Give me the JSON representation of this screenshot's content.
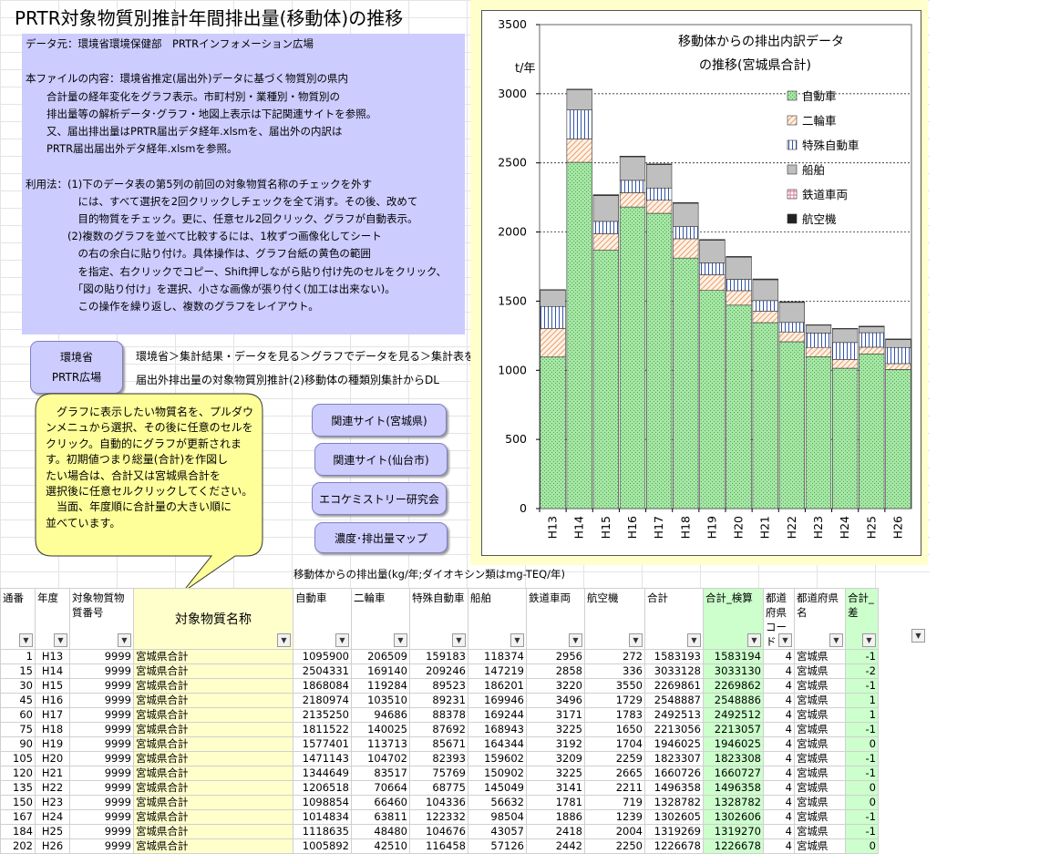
{
  "title": "PRTR対象物質別推計年間排出量(移動体)の推移",
  "info_lines": [
    "データ元：環境省環境保健部　PRTRインフォメーション広場",
    "",
    "本ファイルの内容：環境省推定(届出外)データに基づく物質別の県内",
    "　　合計量の経年変化をグラフ表示。市町村別・業種別・物質別の",
    "　　排出量等の解析データ･グラフ・地図上表示は下記関連サイトを参照。",
    "　　又、届出排出量はPRTR届出デタ経年.xlsmを、届出外の内訳は",
    "　　PRTR届出届出外デタ経年.xlsmを参照。",
    "",
    "利用法：(1)下のデータ表の第5列の前回の対象物質名称のチェックを外す",
    "　　　　　には、すべて選択を2回クリックしチェックを全て消す。その後、改めて",
    "　　　　　目的物質をチェック。更に、任意セル2回クリック、グラフが自動表示。",
    "　　　　(2)複数のグラフを並べて比較するには、1枚ずつ画像化してシート",
    "　　　　　の右の余白に貼り付け。具体操作は、グラフ台紙の黄色の範囲",
    "　　　　　を指定、右クリックでコピー、Shift押しながら貼り付け先のセルをクリック、",
    "　　　　　「図の貼り付け」を選択、小さな画像が張り付く(加工は出来ない)。",
    "　　　　　この操作を繰り返し、複数のグラフをレイアウト。"
  ],
  "env_button": {
    "line1": "環境省",
    "line2": "PRTR広場"
  },
  "links": {
    "line1": "環境省＞集計結果・データを見る＞グラフでデータを見る＞集計表を見る",
    "line2": "届出外排出量の対象物質別推計(2)移動体の種類別集計からDL"
  },
  "callout_lines": [
    "　グラフに表示したい物質名を、プルダウ",
    "ンメニュから選択、その後に任意のセルを",
    "クリック。自動的にグラフが更新されま",
    "す。初期値つまり総量(合計)を作図し",
    "たい場合は、合計又は宮城県合計を",
    "選択後に任意セルクリックしてください。",
    "　当面、年度順に合計量の大きい順に",
    "並べています。"
  ],
  "buttons": [
    "関連サイト(宮城県)",
    "関連サイト(仙台市)",
    "エコケミストリー研究会",
    "濃度･排出量マップ"
  ],
  "table_subtitle": "移動体からの排出量(kg/年;ダイオキシン類はmg-TEQ/年)",
  "columns": [
    "通番",
    "年度",
    "対象物質物質番号",
    "対象物質名称",
    "自動車",
    "二輪車",
    "特殊自動車",
    "船舶",
    "鉄道車両",
    "航空機",
    "合計",
    "合計_検算",
    "都道府県コード",
    "都道府県名",
    "合計_差"
  ],
  "rows": [
    [
      "1",
      "H13",
      "9999",
      "宮城県合計",
      "1095900",
      "206509",
      "159183",
      "118374",
      "2956",
      "272",
      "1583193",
      "1583194",
      "4",
      "宮城県",
      "-1"
    ],
    [
      "15",
      "H14",
      "9999",
      "宮城県合計",
      "2504331",
      "169140",
      "209246",
      "147219",
      "2858",
      "336",
      "3033128",
      "3033130",
      "4",
      "宮城県",
      "-2"
    ],
    [
      "30",
      "H15",
      "9999",
      "宮城県合計",
      "1868084",
      "119284",
      "89523",
      "186201",
      "3220",
      "3550",
      "2269861",
      "2269862",
      "4",
      "宮城県",
      "-1"
    ],
    [
      "45",
      "H16",
      "9999",
      "宮城県合計",
      "2180974",
      "103510",
      "89231",
      "169946",
      "3496",
      "1729",
      "2548887",
      "2548886",
      "4",
      "宮城県",
      "1"
    ],
    [
      "60",
      "H17",
      "9999",
      "宮城県合計",
      "2135250",
      "94686",
      "88378",
      "169244",
      "3171",
      "1783",
      "2492513",
      "2492512",
      "4",
      "宮城県",
      "1"
    ],
    [
      "75",
      "H18",
      "9999",
      "宮城県合計",
      "1811522",
      "140025",
      "87692",
      "168943",
      "3225",
      "1650",
      "2213056",
      "2213057",
      "4",
      "宮城県",
      "-1"
    ],
    [
      "90",
      "H19",
      "9999",
      "宮城県合計",
      "1577401",
      "113713",
      "85671",
      "164344",
      "3192",
      "1704",
      "1946025",
      "1946025",
      "4",
      "宮城県",
      "0"
    ],
    [
      "105",
      "H20",
      "9999",
      "宮城県合計",
      "1471143",
      "104702",
      "82393",
      "159602",
      "3209",
      "2259",
      "1823307",
      "1823308",
      "4",
      "宮城県",
      "-1"
    ],
    [
      "120",
      "H21",
      "9999",
      "宮城県合計",
      "1344649",
      "83517",
      "75769",
      "150902",
      "3225",
      "2665",
      "1660726",
      "1660727",
      "4",
      "宮城県",
      "-1"
    ],
    [
      "135",
      "H22",
      "9999",
      "宮城県合計",
      "1206518",
      "70664",
      "68775",
      "145049",
      "3141",
      "2211",
      "1496358",
      "1496358",
      "4",
      "宮城県",
      "0"
    ],
    [
      "150",
      "H23",
      "9999",
      "宮城県合計",
      "1098854",
      "66460",
      "104336",
      "56632",
      "1781",
      "719",
      "1328782",
      "1328782",
      "4",
      "宮城県",
      "0"
    ],
    [
      "167",
      "H24",
      "9999",
      "宮城県合計",
      "1014834",
      "63811",
      "122332",
      "98504",
      "1886",
      "1239",
      "1302605",
      "1302606",
      "4",
      "宮城県",
      "-1"
    ],
    [
      "184",
      "H25",
      "9999",
      "宮城県合計",
      "1118635",
      "48480",
      "104676",
      "43057",
      "2418",
      "2004",
      "1319269",
      "1319270",
      "4",
      "宮城県",
      "-1"
    ],
    [
      "202",
      "H26",
      "9999",
      "宮城県合計",
      "1005892",
      "42510",
      "116458",
      "57126",
      "2442",
      "2250",
      "1226678",
      "1226678",
      "4",
      "宮城県",
      "0"
    ]
  ],
  "chart_data": {
    "type": "bar",
    "stacked": true,
    "title": "移動体からの排出内訳データ\nの推移(宮城県合計)",
    "ylabel": "t/年",
    "ylim": [
      0,
      3500
    ],
    "yticks": [
      0,
      500,
      1000,
      1500,
      2000,
      2500,
      3000,
      3500
    ],
    "categories": [
      "H13",
      "H14",
      "H15",
      "H16",
      "H17",
      "H18",
      "H19",
      "H20",
      "H21",
      "H22",
      "H23",
      "H24",
      "H25",
      "H26"
    ],
    "series": [
      {
        "name": "自動車",
        "color": "#99e699",
        "values": [
          1095.9,
          2504.3,
          1868.1,
          2181.0,
          2135.3,
          1811.5,
          1577.4,
          1471.1,
          1344.6,
          1206.5,
          1098.9,
          1014.8,
          1118.6,
          1005.9
        ]
      },
      {
        "name": "二輪車",
        "color": "#ffd9b3",
        "values": [
          206.5,
          169.1,
          119.3,
          103.5,
          94.7,
          140.0,
          113.7,
          104.7,
          83.5,
          70.7,
          66.5,
          63.8,
          48.5,
          42.5
        ]
      },
      {
        "name": "特殊自動車",
        "color": "#c6d9f1",
        "values": [
          159.2,
          209.2,
          89.5,
          89.2,
          88.4,
          87.7,
          85.7,
          82.4,
          75.8,
          68.8,
          104.3,
          122.3,
          104.7,
          116.5
        ]
      },
      {
        "name": "船舶",
        "color": "#c0c0c0",
        "values": [
          118.4,
          147.2,
          186.2,
          169.9,
          169.2,
          168.9,
          164.3,
          159.6,
          150.9,
          145.0,
          56.6,
          98.5,
          43.1,
          57.1
        ]
      },
      {
        "name": "鉄道車両",
        "color": "#ffc0cb",
        "values": [
          3.0,
          2.9,
          3.2,
          3.5,
          3.2,
          3.2,
          3.2,
          3.2,
          3.2,
          3.1,
          1.8,
          1.9,
          2.4,
          2.4
        ]
      },
      {
        "name": "航空機",
        "color": "#333333",
        "values": [
          0.3,
          0.3,
          3.6,
          1.7,
          1.8,
          1.7,
          1.7,
          2.3,
          2.7,
          2.2,
          0.7,
          1.2,
          2.0,
          2.3
        ]
      }
    ],
    "legend_position": "top-right"
  }
}
